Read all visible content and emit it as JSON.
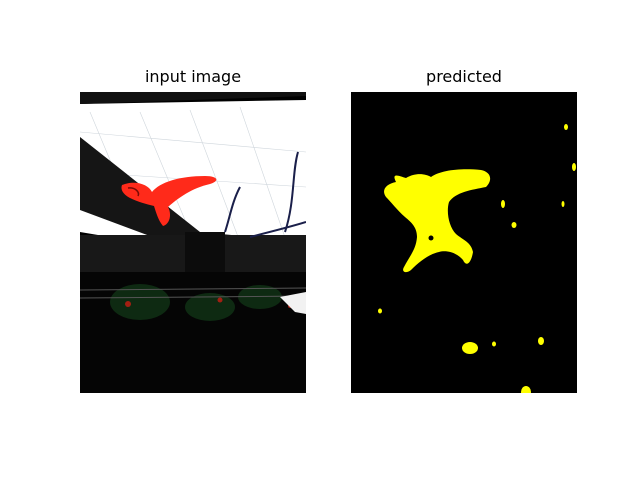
{
  "figure": {
    "left_panel": {
      "title": "input image"
    },
    "right_panel": {
      "title": "predicted"
    }
  },
  "colors": {
    "background": "#ffffff",
    "mask_background": "#000000",
    "mask_foreground": "#ffff00",
    "bird": "#ff2a1a",
    "sky": "#ffffff",
    "beam": "#111111"
  }
}
